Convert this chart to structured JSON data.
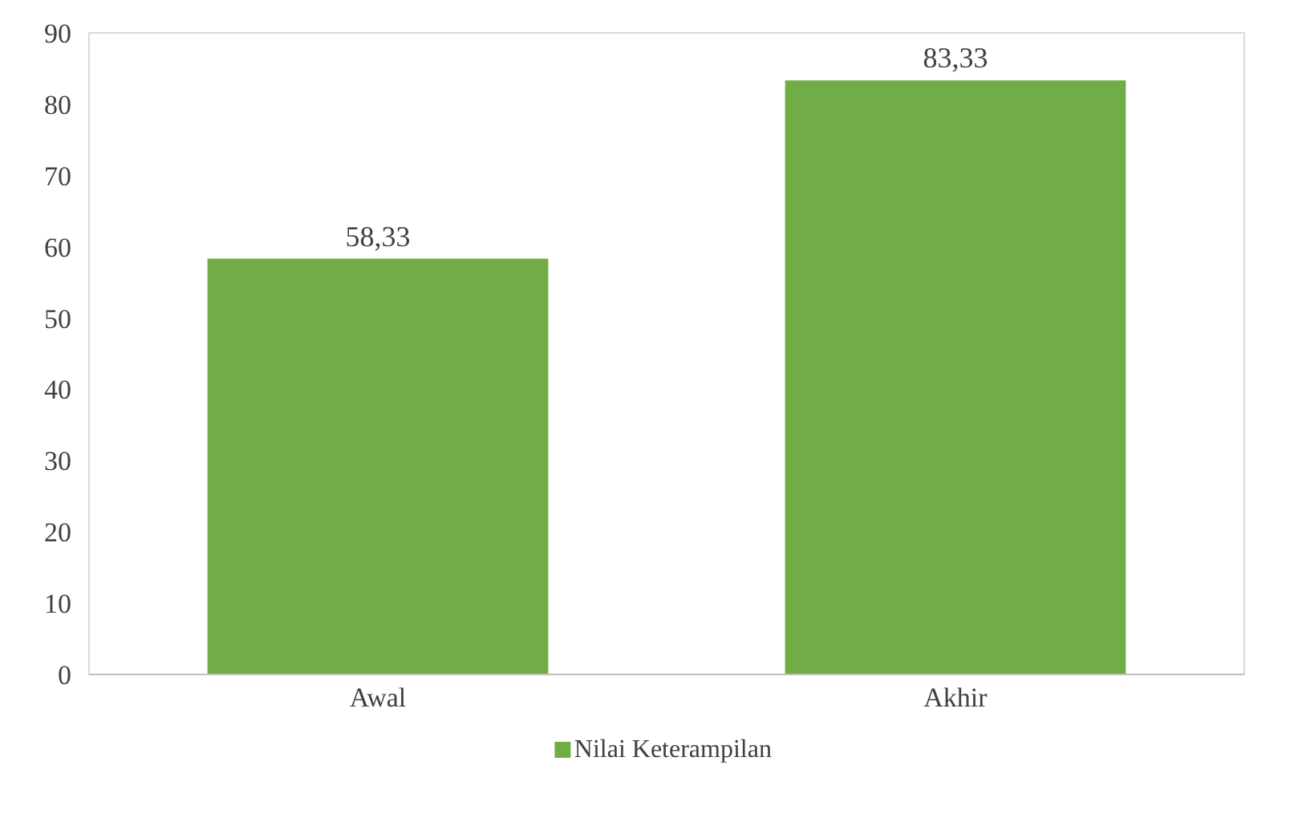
{
  "chart_data": {
    "type": "bar",
    "categories": [
      "Awal",
      "Akhir"
    ],
    "series": [
      {
        "name": "Nilai Keterampilan",
        "color": "#70ad47",
        "values": [
          58.33,
          83.33
        ],
        "value_labels": [
          "58,33",
          "83,33"
        ]
      }
    ],
    "ylim": [
      0,
      90
    ],
    "yticks": [
      0,
      10,
      20,
      30,
      40,
      50,
      60,
      70,
      80,
      90
    ],
    "grid": false,
    "legend": "bottom"
  }
}
